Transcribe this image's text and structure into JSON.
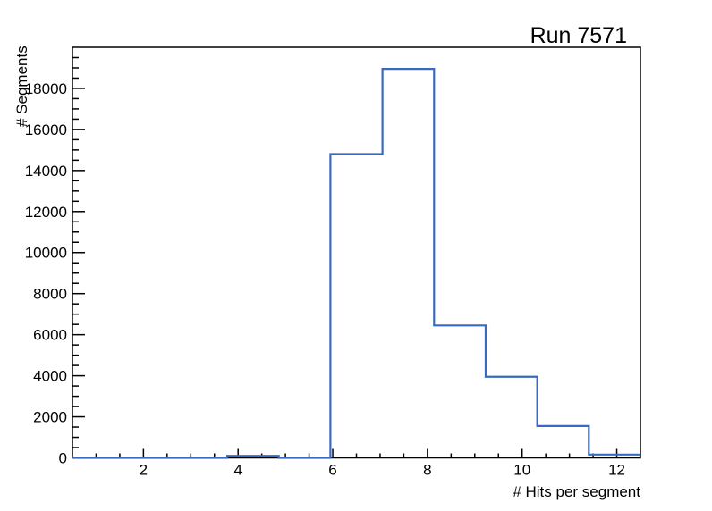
{
  "title": "Run 7571",
  "chart_data": {
    "type": "bar",
    "style": "step-outline-histogram",
    "title": "Run 7571",
    "xlabel": "# Hits per segment",
    "ylabel": "# Segments",
    "xlim": [
      0.5,
      12.5
    ],
    "ylim": [
      0,
      20000
    ],
    "bin_edges": [
      0.5,
      1.59,
      2.68,
      3.77,
      4.86,
      5.95,
      7.05,
      8.14,
      9.23,
      10.32,
      11.41,
      12.5
    ],
    "values": [
      0,
      0,
      0,
      100,
      0,
      14800,
      18950,
      6450,
      3950,
      1550,
      160
    ],
    "x_major_ticks": [
      2,
      4,
      6,
      8,
      10,
      12
    ],
    "x_minor_step": 0.5,
    "y_major_ticks": [
      0,
      2000,
      4000,
      6000,
      8000,
      10000,
      12000,
      14000,
      16000,
      18000
    ],
    "y_minor_step": 500,
    "grid": false,
    "legend": false,
    "line_color": "#3a6abf",
    "frame_color": "#000000",
    "background_color": "#ffffff"
  }
}
